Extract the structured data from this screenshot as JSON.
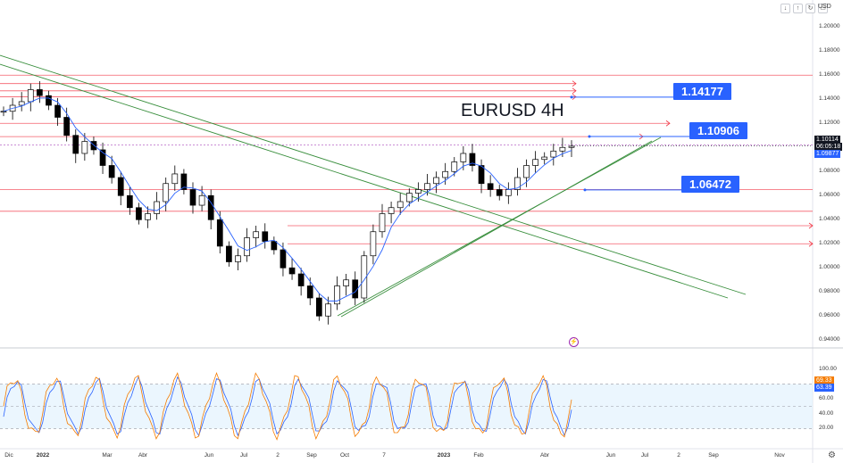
{
  "toolbar": {
    "icons": [
      "arrow-down-icon",
      "arrow-up-icon",
      "refresh-icon",
      "settings-icon"
    ],
    "currency": "USD"
  },
  "chart_data": {
    "type": "candlestick",
    "title": "EURUSD 4H",
    "symbol": "EURUSD",
    "timeframe": "4H",
    "ylim": [
      0.935,
      1.215
    ],
    "y_ticks": [
      "1.20000",
      "1.18000",
      "1.16000",
      "1.14000",
      "1.12000",
      "1.10000",
      "1.08000",
      "1.06000",
      "1.04000",
      "1.02000",
      "1.00000",
      "0.98000",
      "0.96000",
      "0.94000"
    ],
    "x_ticks": [
      "Dic",
      "2022",
      "Mar",
      "Abr",
      "Jun",
      "Jul",
      "2",
      "Sep",
      "Oct",
      "7",
      "2023",
      "Feb",
      "Abr",
      "Jun",
      "Jul",
      "2",
      "Sep",
      "Nov"
    ],
    "current_price": "1.10114",
    "countdown": "06:05:18",
    "secondary_price": "1.09877",
    "price_series_approx": [
      1.13,
      1.135,
      1.138,
      1.148,
      1.143,
      1.135,
      1.125,
      1.11,
      1.095,
      1.105,
      1.098,
      1.085,
      1.075,
      1.06,
      1.05,
      1.04,
      1.045,
      1.055,
      1.07,
      1.078,
      1.065,
      1.052,
      1.06,
      1.04,
      1.018,
      1.005,
      1.01,
      1.025,
      1.03,
      1.022,
      1.015,
      1.0,
      0.995,
      0.985,
      0.975,
      0.96,
      0.97,
      0.985,
      0.99,
      0.975,
      1.01,
      1.03,
      1.045,
      1.05,
      1.055,
      1.062,
      1.065,
      1.07,
      1.075,
      1.08,
      1.088,
      1.095,
      1.085,
      1.07,
      1.065,
      1.06,
      1.065,
      1.075,
      1.085,
      1.09,
      1.092,
      1.097,
      1.1,
      1.101
    ],
    "support_resistance": [
      {
        "price": "1.14177",
        "label": "1.14177"
      },
      {
        "price": "1.10906",
        "label": "1.10906"
      },
      {
        "price": "1.06472",
        "label": "1.06472"
      }
    ],
    "horizontal_levels": [
      1.16,
      1.153,
      1.147,
      1.142,
      1.12,
      1.109,
      1.102,
      1.065,
      1.047,
      1.035,
      1.02
    ],
    "oscillator": {
      "type": "stochastic",
      "ylim": [
        0,
        100
      ],
      "ticks": [
        "100.00",
        "80.00",
        "60.00",
        "40.00",
        "20.00"
      ],
      "levels": [
        80,
        20
      ],
      "k_value": "69.33",
      "d_value": "63.39",
      "k_color": "#f57c00",
      "d_color": "#2962ff"
    }
  },
  "colors": {
    "up": "#ffffff",
    "down": "#000000",
    "ma": "#2962ff",
    "level": "#f23645",
    "trend": "#388e3c",
    "label_bg": "#2962ff"
  },
  "alert_glyph": "⚡"
}
